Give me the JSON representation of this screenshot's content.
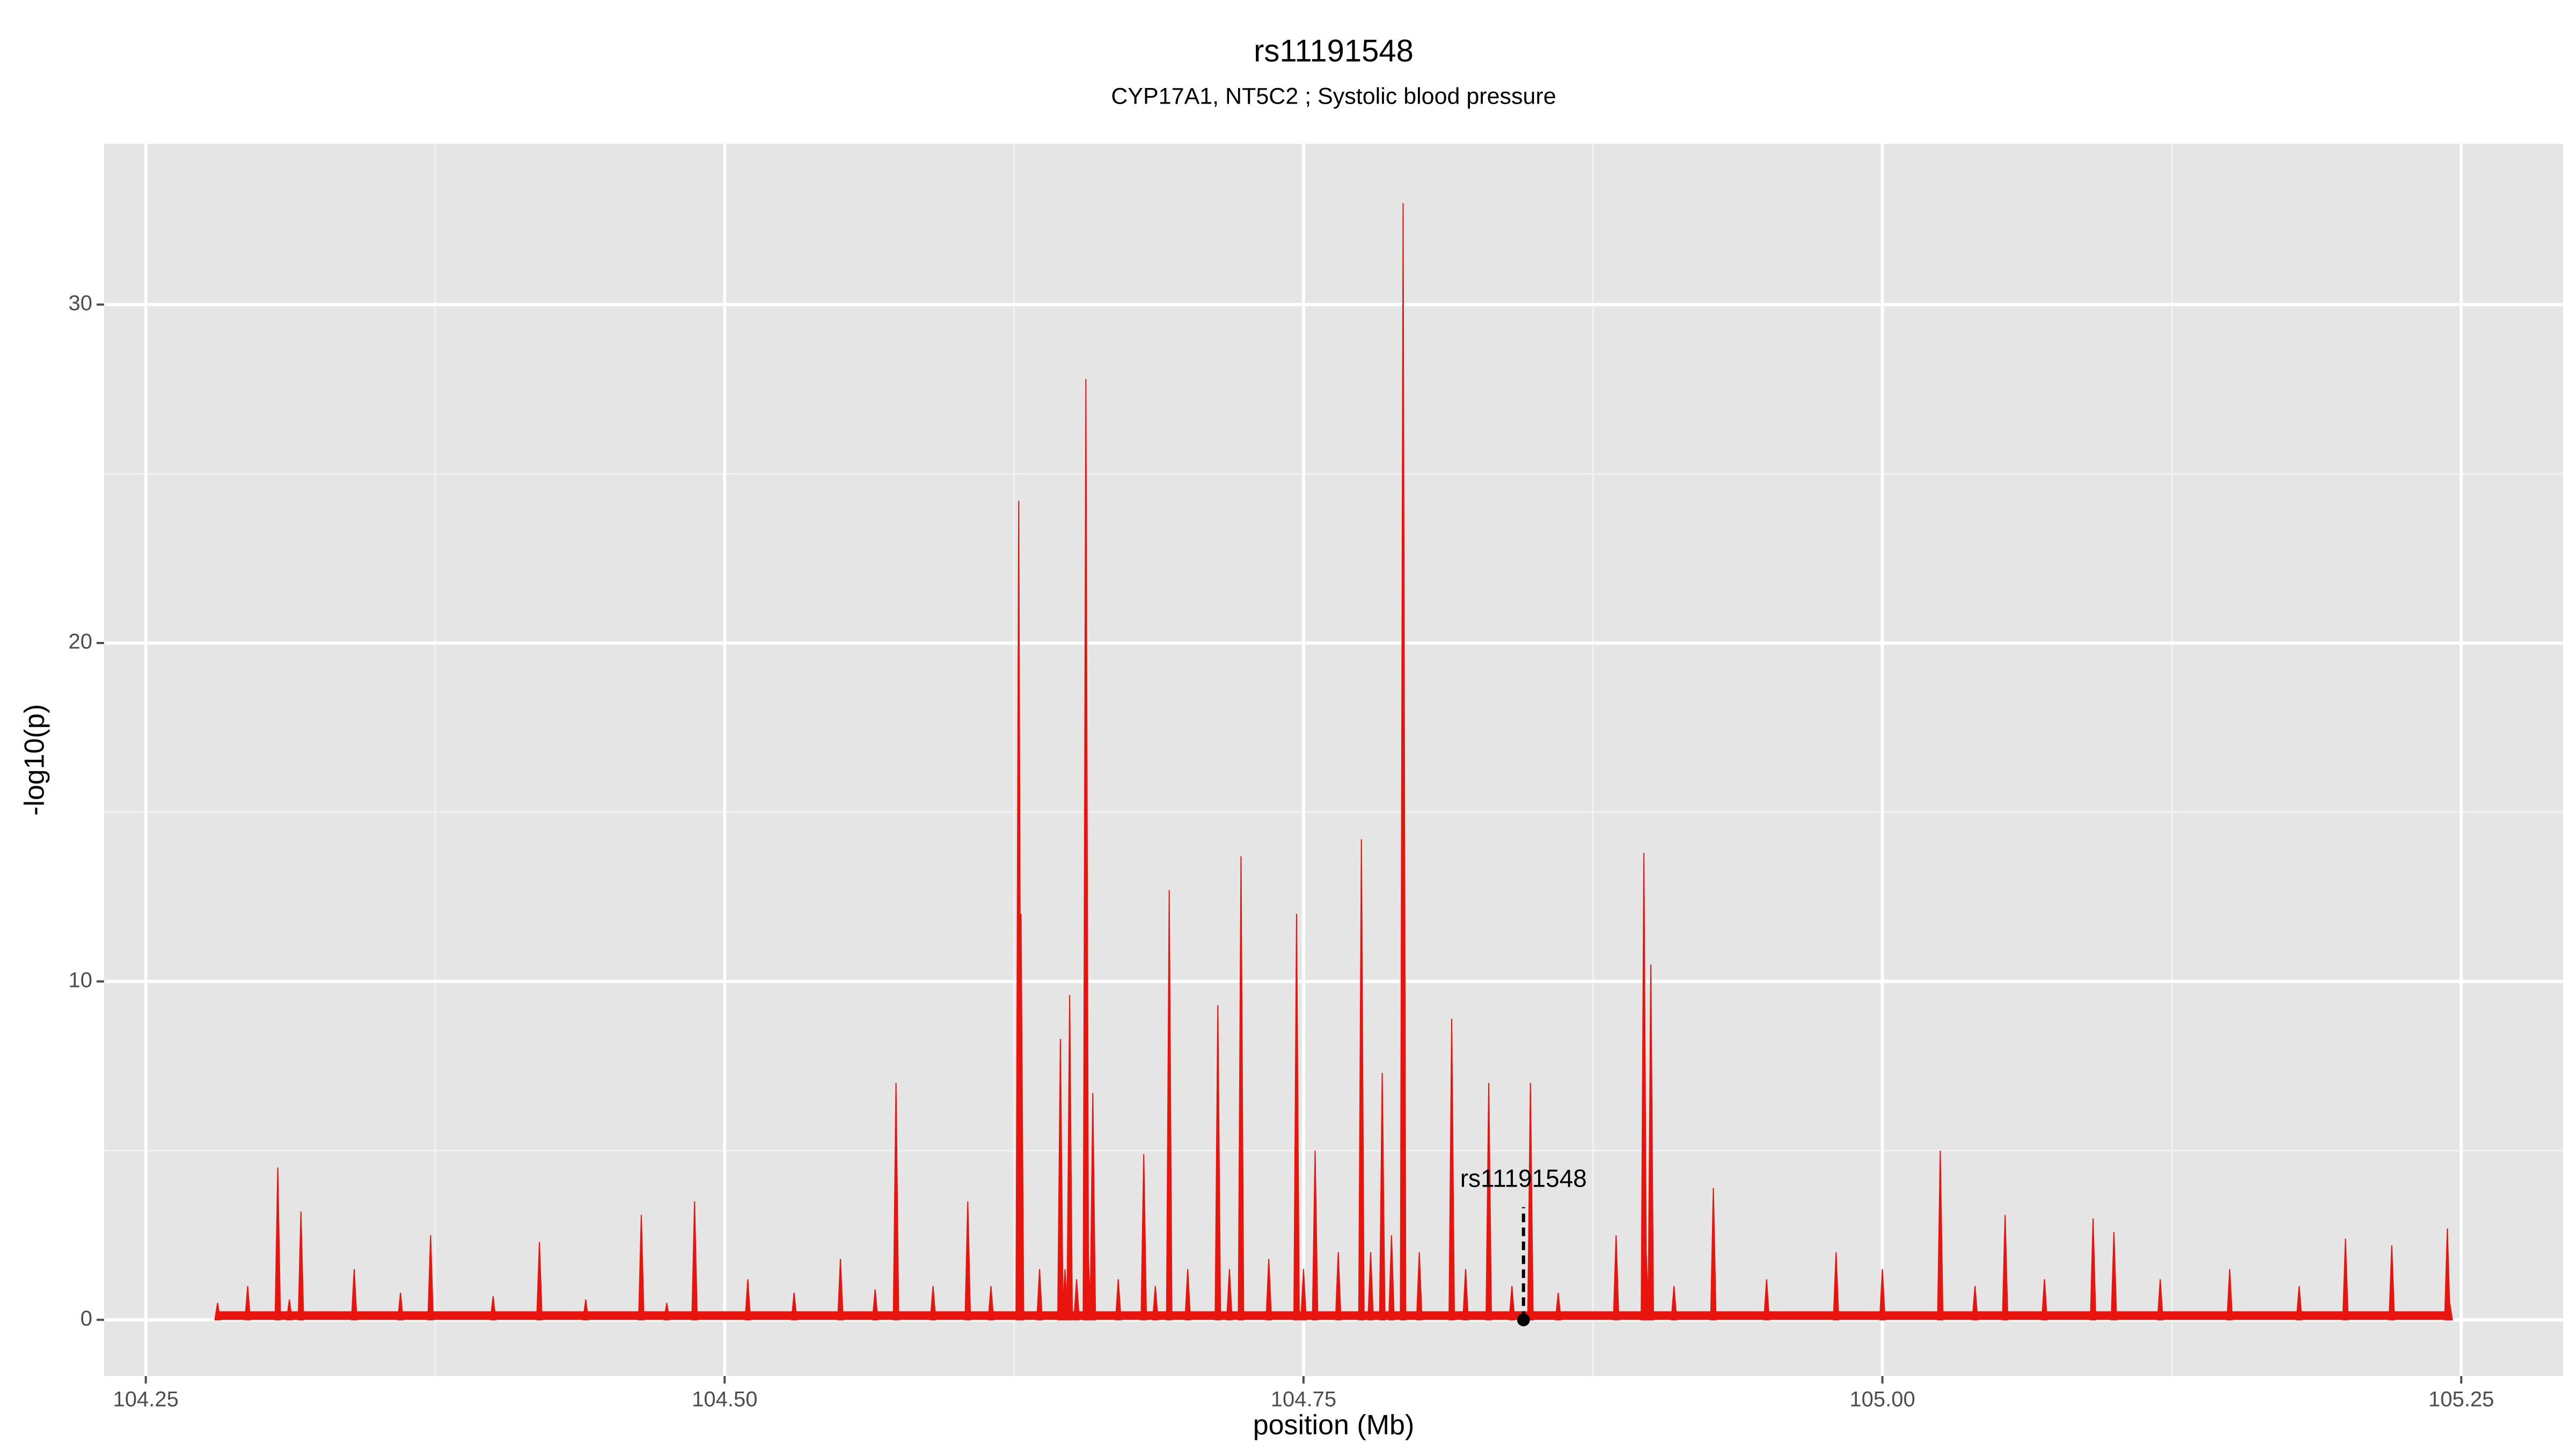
{
  "chart_data": {
    "type": "spike",
    "title": "rs11191548",
    "subtitle": "CYP17A1, NT5C2 ; Systolic blood pressure",
    "xlabel": "position (Mb)",
    "ylabel": "-log10(p)",
    "color": "#e8150f",
    "grid": true,
    "xlim": [
      104.232,
      105.294
    ],
    "ylim": [
      -1.66,
      34.75
    ],
    "xticks": [
      104.25,
      {
        "value": 104.5,
        "label": "104.50"
      },
      {
        "value": 104.75,
        "label": "104.75"
      },
      {
        "value": 105,
        "label": "105.00"
      },
      105.25
    ],
    "yticks": [
      0,
      10,
      20,
      30
    ],
    "x": [
      104.281,
      104.294,
      104.307,
      104.312,
      104.317,
      104.34,
      104.36,
      104.373,
      104.4,
      104.42,
      104.44,
      104.464,
      104.475,
      104.487,
      104.51,
      104.53,
      104.55,
      104.565,
      104.574,
      104.59,
      104.605,
      104.615,
      104.627,
      104.628,
      104.636,
      104.645,
      104.647,
      104.649,
      104.652,
      104.656,
      104.657,
      104.659,
      104.67,
      104.681,
      104.686,
      104.692,
      104.7,
      104.713,
      104.718,
      104.723,
      104.735,
      104.747,
      104.75,
      104.755,
      104.765,
      104.775,
      104.779,
      104.784,
      104.788,
      104.793,
      104.8,
      104.814,
      104.82,
      104.83,
      104.84,
      104.848,
      104.86,
      104.885,
      104.897,
      104.898,
      104.9,
      104.91,
      104.927,
      104.95,
      104.98,
      105.0,
      105.025,
      105.04,
      105.053,
      105.07,
      105.091,
      105.1,
      105.12,
      105.15,
      105.18,
      105.2,
      105.22,
      105.244,
      105.245
    ],
    "values": [
      0.5,
      1.0,
      4.5,
      0.6,
      3.2,
      1.5,
      0.8,
      2.5,
      0.7,
      2.3,
      0.6,
      3.1,
      0.5,
      3.5,
      1.2,
      0.8,
      1.8,
      0.9,
      7.0,
      1.0,
      3.5,
      1.0,
      24.2,
      12.0,
      1.5,
      8.3,
      1.5,
      9.6,
      1.2,
      27.8,
      2.0,
      6.7,
      1.2,
      4.9,
      1.0,
      12.7,
      1.5,
      9.3,
      1.5,
      13.7,
      1.8,
      12.0,
      1.5,
      5.0,
      2.0,
      14.2,
      2.0,
      7.3,
      2.5,
      33.0,
      2.0,
      8.9,
      1.5,
      7.0,
      1.0,
      7.0,
      0.8,
      2.5,
      13.8,
      2.0,
      10.5,
      1.0,
      3.9,
      1.2,
      2.0,
      1.5,
      5.0,
      1.0,
      3.1,
      1.2,
      3.0,
      2.6,
      1.2,
      1.5,
      1.0,
      2.4,
      2.2,
      2.7,
      0.5
    ],
    "annotation": {
      "label": "rs11191548",
      "x": 104.845,
      "y": 0
    }
  }
}
